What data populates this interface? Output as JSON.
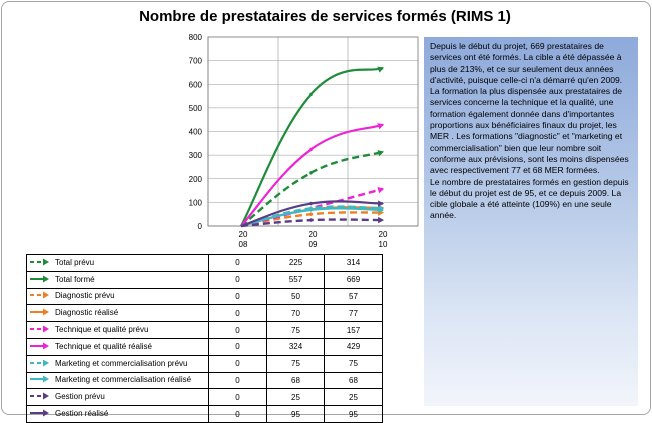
{
  "title": "Nombre de prestataires de services formés (RIMS 1)",
  "colors": {
    "green": "#1e8c3a",
    "orange": "#f07f22",
    "magenta": "#ee22d6",
    "teal": "#3db9c3",
    "purple": "#5b3c84"
  },
  "note": {
    "paragraphs": [
      "Depuis le début du projet, 669 prestataires de services ont été formés. La cible a été dépassée à plus de 213%, et ce sur seulement deux années d'activité,  puisque celle-ci  n'a démarré qu'en 2009. La formation la plus dispensée aux prestataires de services concerne la technique et la qualité,  une formation également donnée dans d'importantes  proportions  aux bénéficiaires finaux du projet, les MER . Les formations \"diagnostic\" et \"marketing et commercialisation\"  bien que leur nombre soit conforme aux prévisions, sont les moins dispensées avec respectivement   77 et 68 MER formées.",
      "Le nombre de prestataires formés en gestion depuis le début du projet est de 95, et ce depuis 2009. La cible globale a été atteinte (109%) en une seule année."
    ]
  },
  "chart_data": {
    "type": "line",
    "title": "Nombre de prestataires de services formés (RIMS 1)",
    "categories": [
      [
        "20",
        "08"
      ],
      [
        "20",
        "09"
      ],
      [
        "20",
        "10"
      ]
    ],
    "ylim": [
      0,
      800
    ],
    "yticks": [
      0,
      100,
      200,
      300,
      400,
      500,
      600,
      700,
      800
    ],
    "grid": true,
    "series": [
      {
        "name": "Total prévu",
        "values": [
          0,
          225,
          314
        ],
        "color": "#1e8c3a",
        "dashed": true
      },
      {
        "name": "Total formé",
        "values": [
          0,
          557,
          669
        ],
        "color": "#1e8c3a",
        "dashed": false
      },
      {
        "name": "Diagnostic prévu",
        "values": [
          0,
          50,
          57
        ],
        "color": "#f07f22",
        "dashed": true
      },
      {
        "name": "Diagnostic réalisé",
        "values": [
          0,
          70,
          77
        ],
        "color": "#f07f22",
        "dashed": false
      },
      {
        "name": "Technique et qualité prévu",
        "values": [
          0,
          75,
          157
        ],
        "color": "#ee22d6",
        "dashed": true
      },
      {
        "name": "Technique et qualité réalisé",
        "values": [
          0,
          324,
          429
        ],
        "color": "#ee22d6",
        "dashed": false
      },
      {
        "name": "Marketing et commercialisation  prévu",
        "values": [
          0,
          75,
          75
        ],
        "color": "#3db9c3",
        "dashed": true
      },
      {
        "name": "Marketing et commercialisation  réalisé",
        "values": [
          0,
          68,
          68
        ],
        "color": "#3db9c3",
        "dashed": false
      },
      {
        "name": "Gestion prévu",
        "values": [
          0,
          25,
          25
        ],
        "color": "#5b3c84",
        "dashed": true
      },
      {
        "name": "Gestion réalisé",
        "values": [
          0,
          95,
          95
        ],
        "color": "#5b3c84",
        "dashed": false
      }
    ]
  }
}
